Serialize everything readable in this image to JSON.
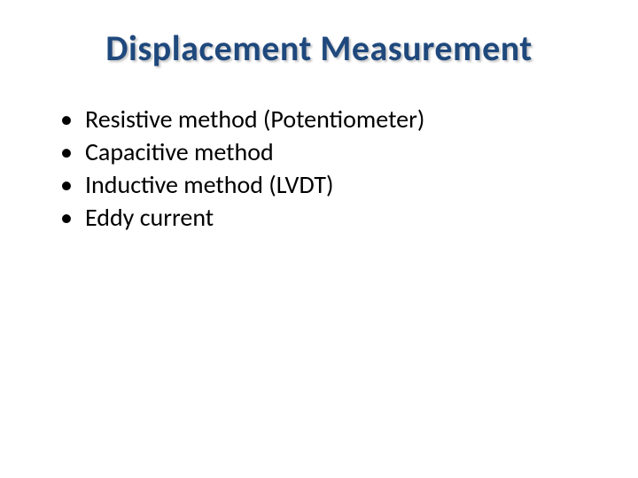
{
  "slide": {
    "title": "Displacement Measurement",
    "title_color": "#1f497d",
    "title_fontsize": 40,
    "title_fontweight": 700,
    "title_shadow_color": "rgba(160,160,160,0.6)",
    "background_color": "#ffffff",
    "body_fontsize": 28,
    "body_color": "#000000",
    "bullets": [
      {
        "text": "Resistive method (Potentiometer)"
      },
      {
        "text": "Capacitive method"
      },
      {
        "text": "Inductive method (LVDT)"
      },
      {
        "text": "Eddy current"
      }
    ]
  }
}
